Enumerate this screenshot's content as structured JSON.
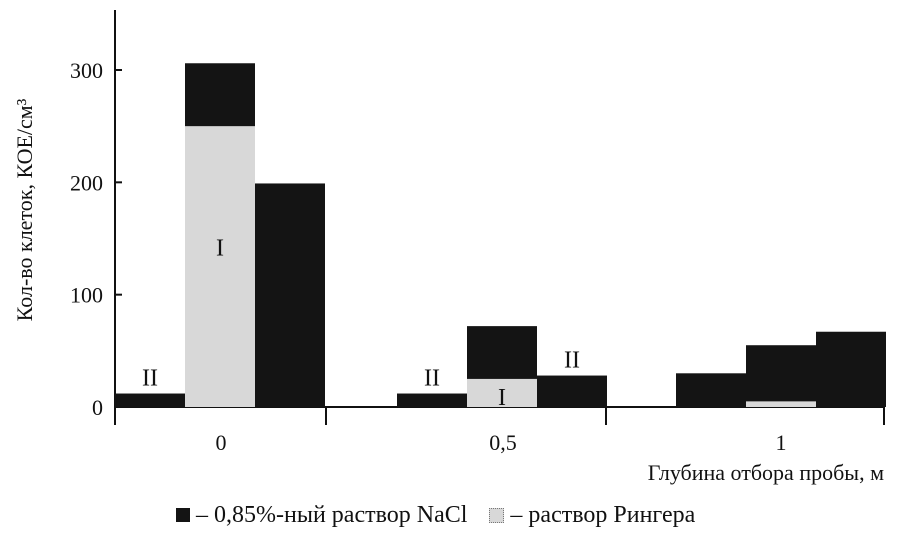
{
  "chart_data": {
    "type": "bar",
    "ylabel": "Кол-во клеток, КОЕ/см³",
    "xlabel": "Глубина отбора пробы, м",
    "ylim": [
      0,
      350
    ],
    "yticks": [
      0,
      100,
      200,
      300
    ],
    "categories": [
      "0",
      "0,5",
      "1"
    ],
    "groups": [
      {
        "category": "0",
        "bars": [
          {
            "label": "II",
            "segments": [
              {
                "series": "0,85%-ный раствор NaCl",
                "value": 12
              }
            ]
          },
          {
            "label": "I",
            "segments": [
              {
                "series": "раствор Рингера",
                "value": 250
              },
              {
                "series": "0,85%-ный раствор NaCl",
                "value": 56
              }
            ]
          },
          {
            "label": "",
            "segments": [
              {
                "series": "0,85%-ный раствор NaCl",
                "value": 199
              }
            ]
          }
        ]
      },
      {
        "category": "0,5",
        "bars": [
          {
            "label": "II",
            "segments": [
              {
                "series": "0,85%-ный раствор NaCl",
                "value": 12
              }
            ]
          },
          {
            "label": "I",
            "segments": [
              {
                "series": "раствор Рингера",
                "value": 25
              },
              {
                "series": "0,85%-ный раствор NaCl",
                "value": 47
              }
            ]
          },
          {
            "label": "II",
            "segments": [
              {
                "series": "0,85%-ный раствор NaCl",
                "value": 28
              }
            ]
          }
        ]
      },
      {
        "category": "1",
        "bars": [
          {
            "label": "",
            "segments": [
              {
                "series": "0,85%-ный раствор NaCl",
                "value": 30
              }
            ]
          },
          {
            "label": "",
            "segments": [
              {
                "series": "раствор Рингера",
                "value": 5
              },
              {
                "series": "0,85%-ный раствор NaCl",
                "value": 50
              }
            ]
          },
          {
            "label": "",
            "segments": [
              {
                "series": "0,85%-ный раствор NaCl",
                "value": 67
              }
            ]
          }
        ]
      }
    ],
    "legend": {
      "position": "bottom",
      "items": [
        {
          "series": "0,85%-ный раствор NaCl",
          "text": "– 0,85%-ный раствор NaCl",
          "color": "#141414"
        },
        {
          "series": "раствор Рингера",
          "text": "– раствор Рингера",
          "color": "#d8d8d8"
        }
      ]
    },
    "grid": false
  }
}
